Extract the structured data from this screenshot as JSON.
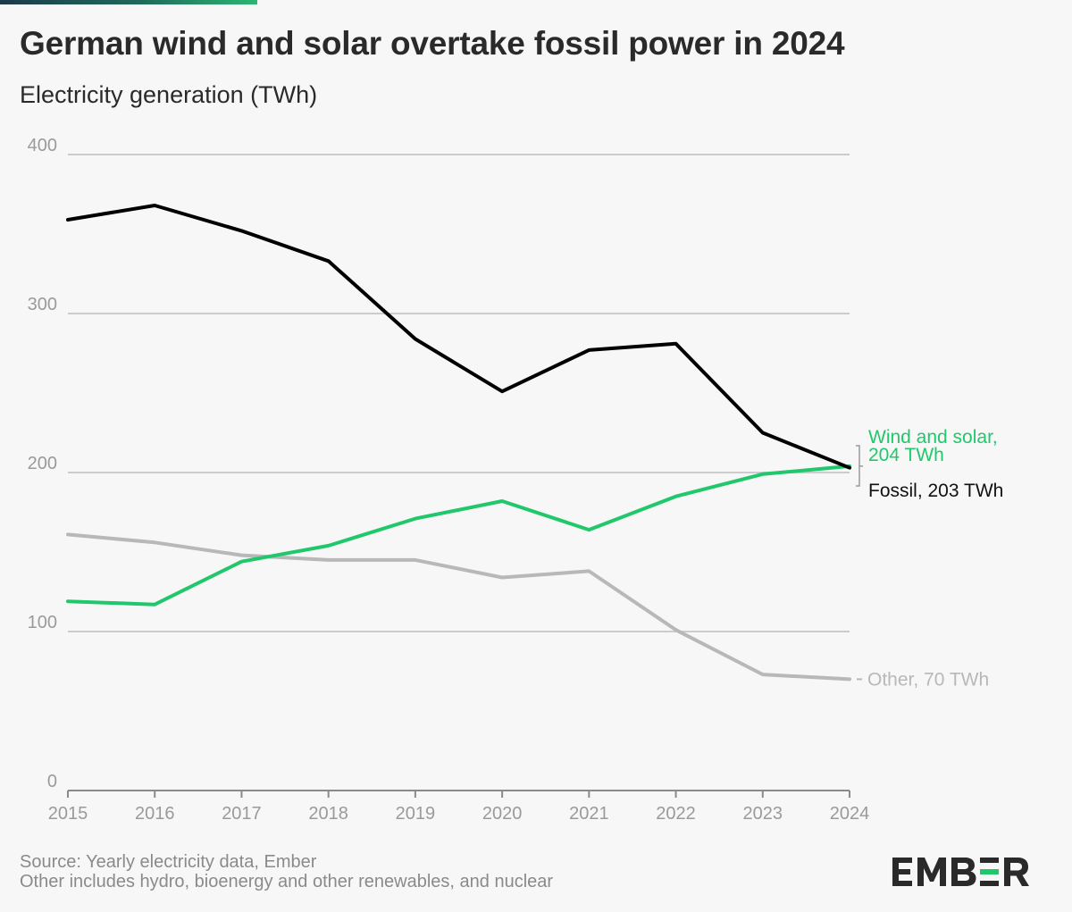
{
  "header": {
    "title": "German wind and solar overtake fossil power in 2024",
    "subtitle": "Electricity generation (TWh)"
  },
  "footer": {
    "source": "Source: Yearly electricity data, Ember",
    "note": "Other includes hydro, bioenergy and other renewables, and nuclear"
  },
  "logo": {
    "text": "EMBER"
  },
  "colors": {
    "fossil": "#000000",
    "wind_solar": "#20c86b",
    "other": "#b8b8b8",
    "grid": "#cccccc",
    "axis_text": "#9a9a9a"
  },
  "chart_data": {
    "type": "line",
    "title": "German wind and solar overtake fossil power in 2024",
    "ylabel": "Electricity generation (TWh)",
    "xlabel": "",
    "x": [
      "2015",
      "2016",
      "2017",
      "2018",
      "2019",
      "2020",
      "2021",
      "2022",
      "2023",
      "2024"
    ],
    "ylim": [
      0,
      400
    ],
    "yticks": [
      "0",
      "100",
      "200",
      "300",
      "400"
    ],
    "grid": "horizontal",
    "series": [
      {
        "name": "Fossil",
        "color": "#000000",
        "values": [
          359,
          368,
          352,
          333,
          284,
          251,
          277,
          281,
          225,
          203
        ],
        "end_label": "Fossil, 203 TWh"
      },
      {
        "name": "Wind and solar",
        "color": "#20c86b",
        "values": [
          119,
          117,
          144,
          154,
          171,
          182,
          164,
          185,
          199,
          204
        ],
        "end_label_line1": "Wind and solar,",
        "end_label_line2": "204 TWh"
      },
      {
        "name": "Other",
        "color": "#b8b8b8",
        "values": [
          161,
          156,
          148,
          145,
          145,
          134,
          138,
          101,
          73,
          70
        ],
        "end_label": "Other, 70 TWh"
      }
    ]
  }
}
